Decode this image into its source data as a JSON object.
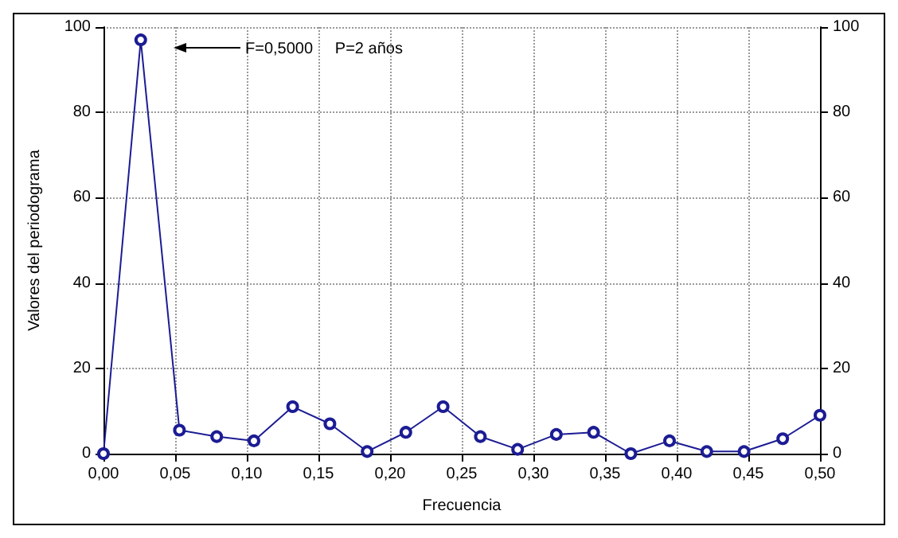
{
  "chart_data": {
    "type": "line",
    "xlabel": "Frecuencia",
    "ylabel": "Valores del periodograma",
    "x": [
      0,
      0.026,
      0.053,
      0.079,
      0.105,
      0.132,
      0.158,
      0.184,
      0.211,
      0.237,
      0.263,
      0.289,
      0.316,
      0.342,
      0.368,
      0.395,
      0.421,
      0.447,
      0.474,
      0.5
    ],
    "series": [
      {
        "color": "#1c1c94",
        "values": [
          0,
          97,
          5.5,
          4,
          3,
          11,
          7,
          0.5,
          5,
          11,
          4,
          1,
          4.5,
          5,
          0,
          3,
          0.5,
          0.5,
          3.5,
          9
        ]
      }
    ],
    "xlim": [
      0,
      0.5
    ],
    "xticks": [
      {
        "value": 0,
        "label": "0,00"
      },
      {
        "value": 0.05,
        "label": "0,05"
      },
      {
        "value": 0.1,
        "label": "0,10"
      },
      {
        "value": 0.15,
        "label": "0,15"
      },
      {
        "value": 0.2,
        "label": "0,20"
      },
      {
        "value": 0.25,
        "label": "0,25"
      },
      {
        "value": 0.3,
        "label": "0,30"
      },
      {
        "value": 0.35,
        "label": "0,35"
      },
      {
        "value": 0.4,
        "label": "0,40"
      },
      {
        "value": 0.45,
        "label": "0,45"
      },
      {
        "value": 0.5,
        "label": "0,50"
      }
    ],
    "ylim": [
      0,
      100
    ],
    "yticks": [
      0,
      20,
      40,
      60,
      80,
      100
    ],
    "y2lim": [
      0,
      100
    ],
    "y2ticks": [
      0,
      20,
      40,
      60,
      80,
      100
    ],
    "annotations": [
      "F=0,5000     P=2 años"
    ],
    "grid": true,
    "marker": "circle",
    "line_style": "solid"
  }
}
